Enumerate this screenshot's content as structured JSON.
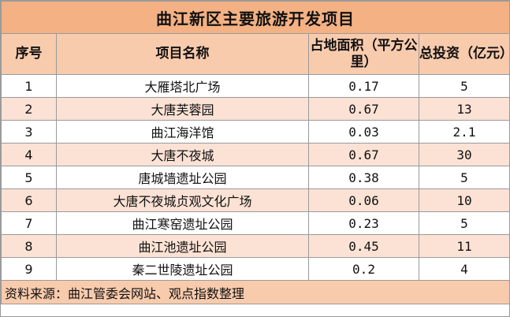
{
  "title": "曲江新区主要旅游开发项目",
  "headers": {
    "index": "序号",
    "name": "项目名称",
    "area": "占地面积（平方公里）",
    "investment": "总投资（亿元）"
  },
  "rows": [
    {
      "index": "1",
      "name": "大雁塔北广场",
      "area": "0.17",
      "investment": "5"
    },
    {
      "index": "2",
      "name": "大唐芙蓉园",
      "area": "0.67",
      "investment": "13"
    },
    {
      "index": "3",
      "name": "曲江海洋馆",
      "area": "0.03",
      "investment": "2.1"
    },
    {
      "index": "4",
      "name": "大唐不夜城",
      "area": "0.67",
      "investment": "30"
    },
    {
      "index": "5",
      "name": "唐城墙遗址公园",
      "area": "0.38",
      "investment": "5"
    },
    {
      "index": "6",
      "name": "大唐不夜城贞观文化广场",
      "area": "0.06",
      "investment": "10"
    },
    {
      "index": "7",
      "name": "曲江寒窑遗址公园",
      "area": "0.23",
      "investment": "5"
    },
    {
      "index": "8",
      "name": "曲江池遗址公园",
      "area": "0.45",
      "investment": "11"
    },
    {
      "index": "9",
      "name": "秦二世陵遗址公园",
      "area": "0.2",
      "investment": "4"
    }
  ],
  "source": "资料来源：曲江管委会网站、观点指数整理",
  "colors": {
    "title_bg": "#f4b183",
    "header_bg": "#f8cbad",
    "stripe_bg": "#fbe2d5",
    "border": "#9a9a9a"
  }
}
